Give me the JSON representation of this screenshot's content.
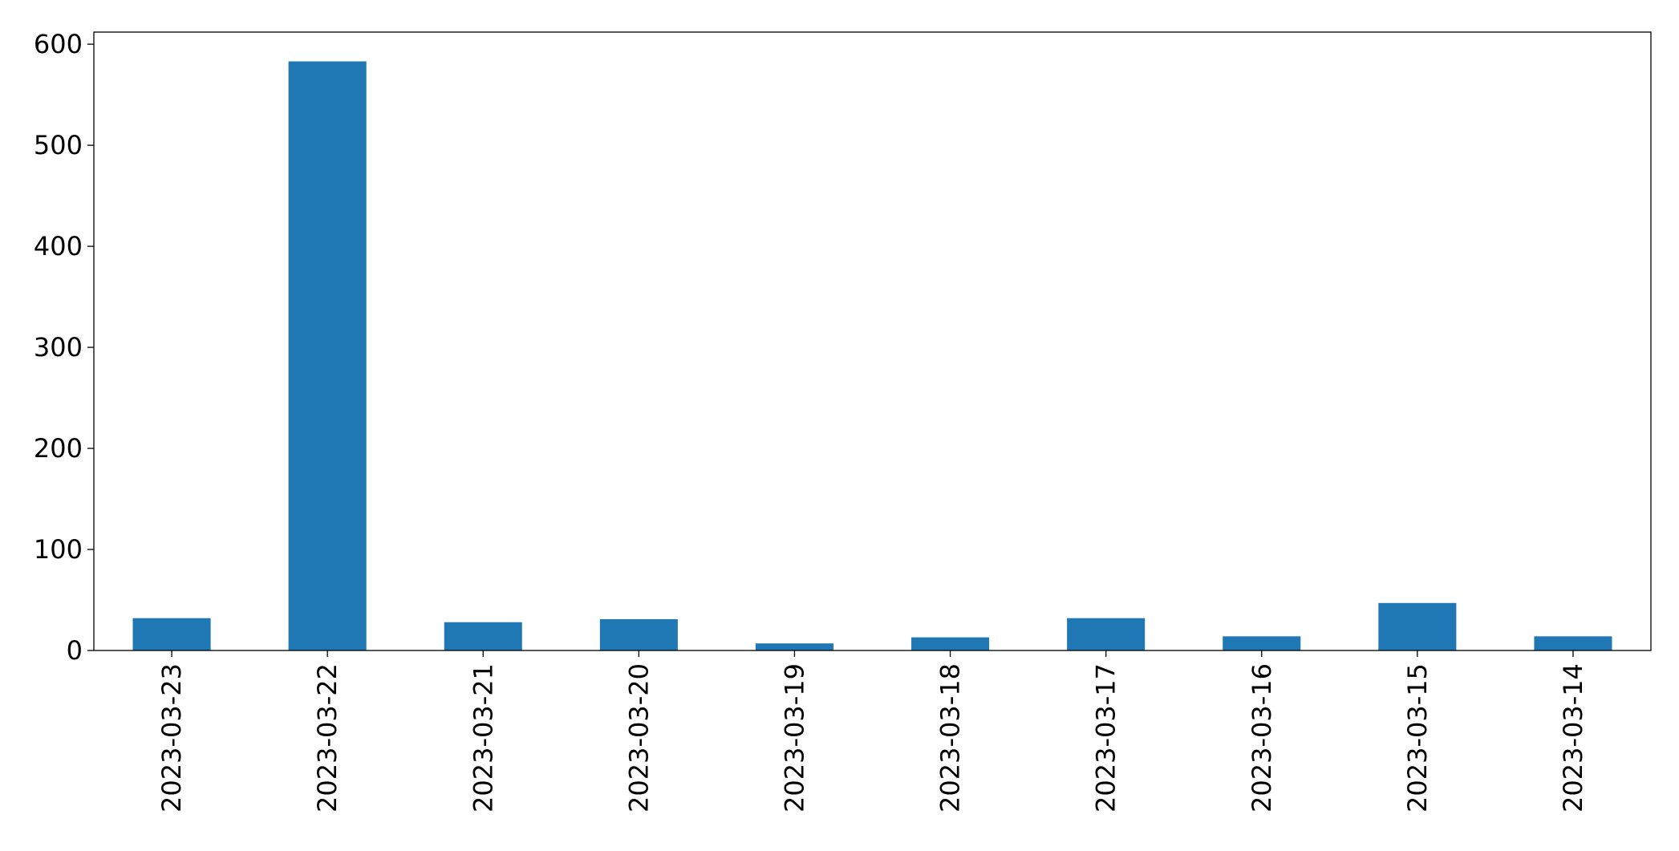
{
  "chart_data": {
    "type": "bar",
    "title": "",
    "xlabel": "",
    "ylabel": "",
    "categories": [
      "2023-03-23",
      "2023-03-22",
      "2023-03-21",
      "2023-03-20",
      "2023-03-19",
      "2023-03-18",
      "2023-03-17",
      "2023-03-16",
      "2023-03-15",
      "2023-03-14"
    ],
    "values": [
      32,
      583,
      28,
      31,
      7,
      13,
      32,
      14,
      47,
      14
    ],
    "ylim": [
      0,
      612
    ],
    "yticks": [
      0,
      100,
      200,
      300,
      400,
      500,
      600
    ],
    "ytick_labels": [
      "0",
      "100",
      "200",
      "300",
      "400",
      "500",
      "600"
    ],
    "grid": false,
    "legend": "none",
    "bar_color": "#1f77b4",
    "xtick_rotation": "vertical"
  }
}
